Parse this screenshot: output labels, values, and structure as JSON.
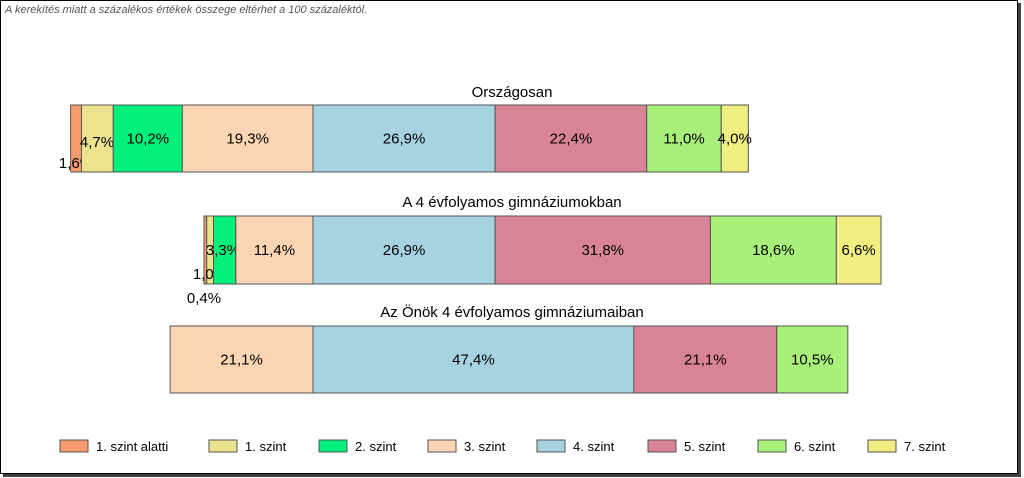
{
  "note": "A kerekítés miatt a  százalékos értékek összege eltérhet a 100 százaléktól.",
  "chart_data": {
    "type": "bar",
    "orientation": "horizontal",
    "stacked": true,
    "categories_rows": [
      "Országosan",
      "A 4 évfolyamos gimnáziumokban",
      "Az Önök 4 évfolyamos gimnáziumaiban"
    ],
    "centered_on": "boundary between 3. szint and 4. szint",
    "legend_position": "bottom",
    "grid": false,
    "series": [
      {
        "name": "1. szint alatti",
        "color": "#f79b6e",
        "values": [
          1.6,
          0.4,
          null
        ],
        "labels": [
          "1,6%",
          "0,4%",
          ""
        ]
      },
      {
        "name": "1. szint",
        "color": "#ebe28e",
        "values": [
          4.7,
          1.0,
          null
        ],
        "labels": [
          "4,7%",
          "1,0%",
          ""
        ]
      },
      {
        "name": "2. szint",
        "color": "#00f07a",
        "values": [
          10.2,
          3.3,
          null
        ],
        "labels": [
          "10,2%",
          "3,3%",
          ""
        ]
      },
      {
        "name": "3. szint",
        "color": "#fcd5b4",
        "values": [
          19.3,
          11.4,
          21.1
        ],
        "labels": [
          "19,3%",
          "11,4%",
          "21,1%"
        ]
      },
      {
        "name": "4. szint",
        "color": "#a6d2e2",
        "values": [
          26.9,
          26.9,
          47.4
        ],
        "labels": [
          "26,9%",
          "26,9%",
          "47,4%"
        ]
      },
      {
        "name": "5. szint",
        "color": "#d88496",
        "values": [
          22.4,
          31.8,
          21.1
        ],
        "labels": [
          "22,4%",
          "31,8%",
          "21,1%"
        ]
      },
      {
        "name": "6. szint",
        "color": "#a8f07a",
        "values": [
          11.0,
          18.6,
          10.5
        ],
        "labels": [
          "11,0%",
          "18,6%",
          "10,5%"
        ]
      },
      {
        "name": "7. szint",
        "color": "#f1ef82",
        "values": [
          4.0,
          6.6,
          null
        ],
        "labels": [
          "4,0%",
          "6,6%",
          ""
        ]
      }
    ]
  }
}
